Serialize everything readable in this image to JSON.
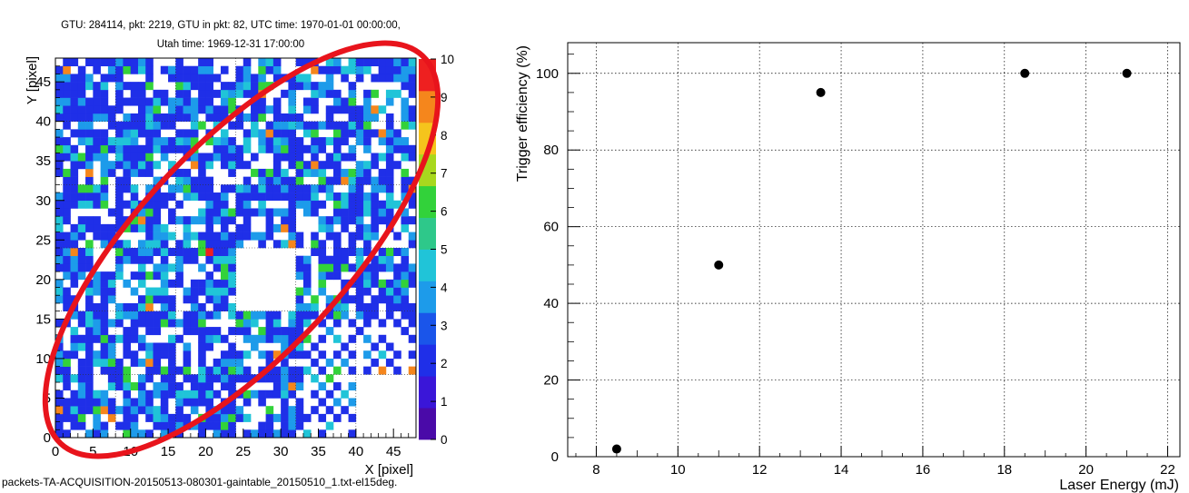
{
  "left_panel": {
    "title_line1": "GTU: 284114, pkt: 2219, GTU in pkt: 82, UTC time: 1970-01-01 00:00:00,",
    "title_line2": "Utah time: 1969-12-31 17:00:00",
    "footer": "packets-TA-ACQUISITION-20150513-080301-gaintable_20150510_1.txt-el15deg.",
    "chart_data": {
      "type": "heatmap",
      "xlabel": "X [pixel]",
      "ylabel": "Y [pixel]",
      "xlim": [
        0,
        48
      ],
      "ylim": [
        0,
        48
      ],
      "x_ticks": [
        0,
        5,
        10,
        15,
        20,
        25,
        30,
        35,
        40,
        45
      ],
      "y_ticks": [
        0,
        5,
        10,
        15,
        20,
        25,
        30,
        35,
        40,
        45
      ],
      "z_ticks": [
        "0",
        "1",
        "2",
        "3",
        "4",
        "5",
        "6",
        "7",
        "8",
        "9",
        "10"
      ],
      "zlim": [
        0,
        10
      ],
      "colors": {
        "blue": "#1f2fe8",
        "lightblue": "#1d9bea",
        "cyan": "#20c4d8",
        "green": "#32d23a",
        "orange": "#f5861c",
        "red": "#ee2020",
        "ellipse": "#e8141c"
      }
    }
  },
  "right_panel": {
    "chart_data": {
      "type": "scatter",
      "xlabel": "Laser Energy (mJ)",
      "ylabel": "Trigger  efficiency (%)",
      "xlim": [
        7.3,
        22.3
      ],
      "ylim": [
        0,
        108
      ],
      "x_ticks": [
        8,
        10,
        12,
        14,
        16,
        18,
        20,
        22
      ],
      "y_ticks": [
        0,
        20,
        40,
        60,
        80,
        100
      ],
      "grid": true,
      "points": [
        {
          "x": 8.5,
          "y": 2
        },
        {
          "x": 11,
          "y": 50
        },
        {
          "x": 13.5,
          "y": 95
        },
        {
          "x": 18.5,
          "y": 100
        },
        {
          "x": 21,
          "y": 100
        }
      ]
    }
  }
}
